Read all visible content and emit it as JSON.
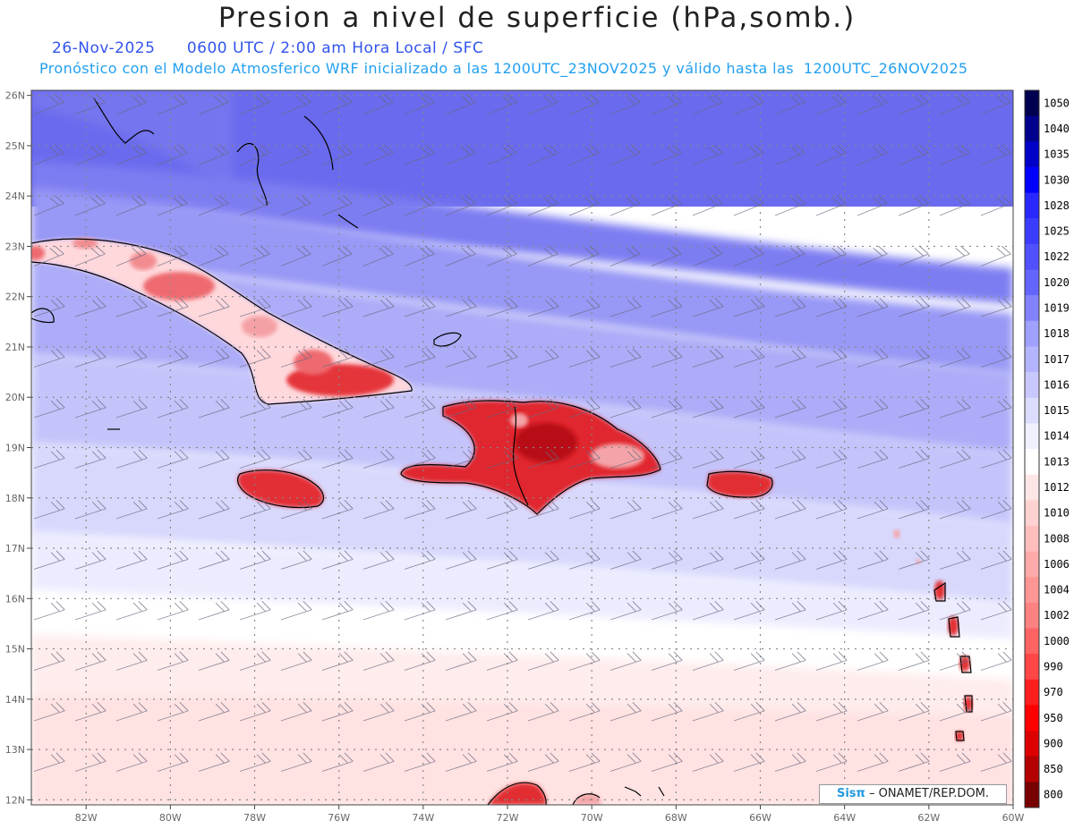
{
  "title": "Presion a nivel de superficie (hPa,somb.)",
  "subtitle_date": "26-Nov-2025",
  "subtitle_time": "0600 UTC / 2:00 am Hora Local / SFC",
  "subtitle_model": "Pronóstico con el Modelo Atmosferico WRF inicializado a las 1200UTC_23NOV2025 y válido hasta las  1200UTC_26NOV2025",
  "credit": {
    "logo": "Sisπ",
    "text": "– ONAMET/REP.DOM."
  },
  "map": {
    "lon_range": [
      -83.3,
      -60
    ],
    "lat_range": [
      11.9,
      26.1
    ],
    "lon_ticks": [
      "82W",
      "80W",
      "78W",
      "76W",
      "74W",
      "72W",
      "70W",
      "68W",
      "66W",
      "64W",
      "62W",
      "60W"
    ],
    "lat_ticks": [
      "26N",
      "25N",
      "24N",
      "23N",
      "22N",
      "21N",
      "20N",
      "19N",
      "18N",
      "17N",
      "16N",
      "15N",
      "14N",
      "13N",
      "12N"
    ]
  },
  "colorbar": {
    "labels": [
      "1050",
      "1040",
      "1035",
      "1030",
      "1028",
      "1025",
      "1022",
      "1020",
      "1019",
      "1018",
      "1017",
      "1016",
      "1015",
      "1014",
      "1013",
      "1012",
      "1010",
      "1008",
      "1006",
      "1004",
      "1002",
      "1000",
      "990",
      "970",
      "950",
      "900",
      "850",
      "800"
    ],
    "colors": [
      "#000050",
      "#00008c",
      "#0000c8",
      "#0000ff",
      "#2828ff",
      "#3c3cff",
      "#5050ff",
      "#6464ff",
      "#8282ff",
      "#a0a0ff",
      "#b4b4ff",
      "#c8c8ff",
      "#dcdcff",
      "#f0f0ff",
      "#ffffff",
      "#ffe6e6",
      "#ffd2d2",
      "#ffbebe",
      "#ffaaaa",
      "#ff9696",
      "#ff8282",
      "#ff6464",
      "#ff4646",
      "#ff1e1e",
      "#ff0000",
      "#dc0000",
      "#b40000",
      "#780000"
    ]
  }
}
